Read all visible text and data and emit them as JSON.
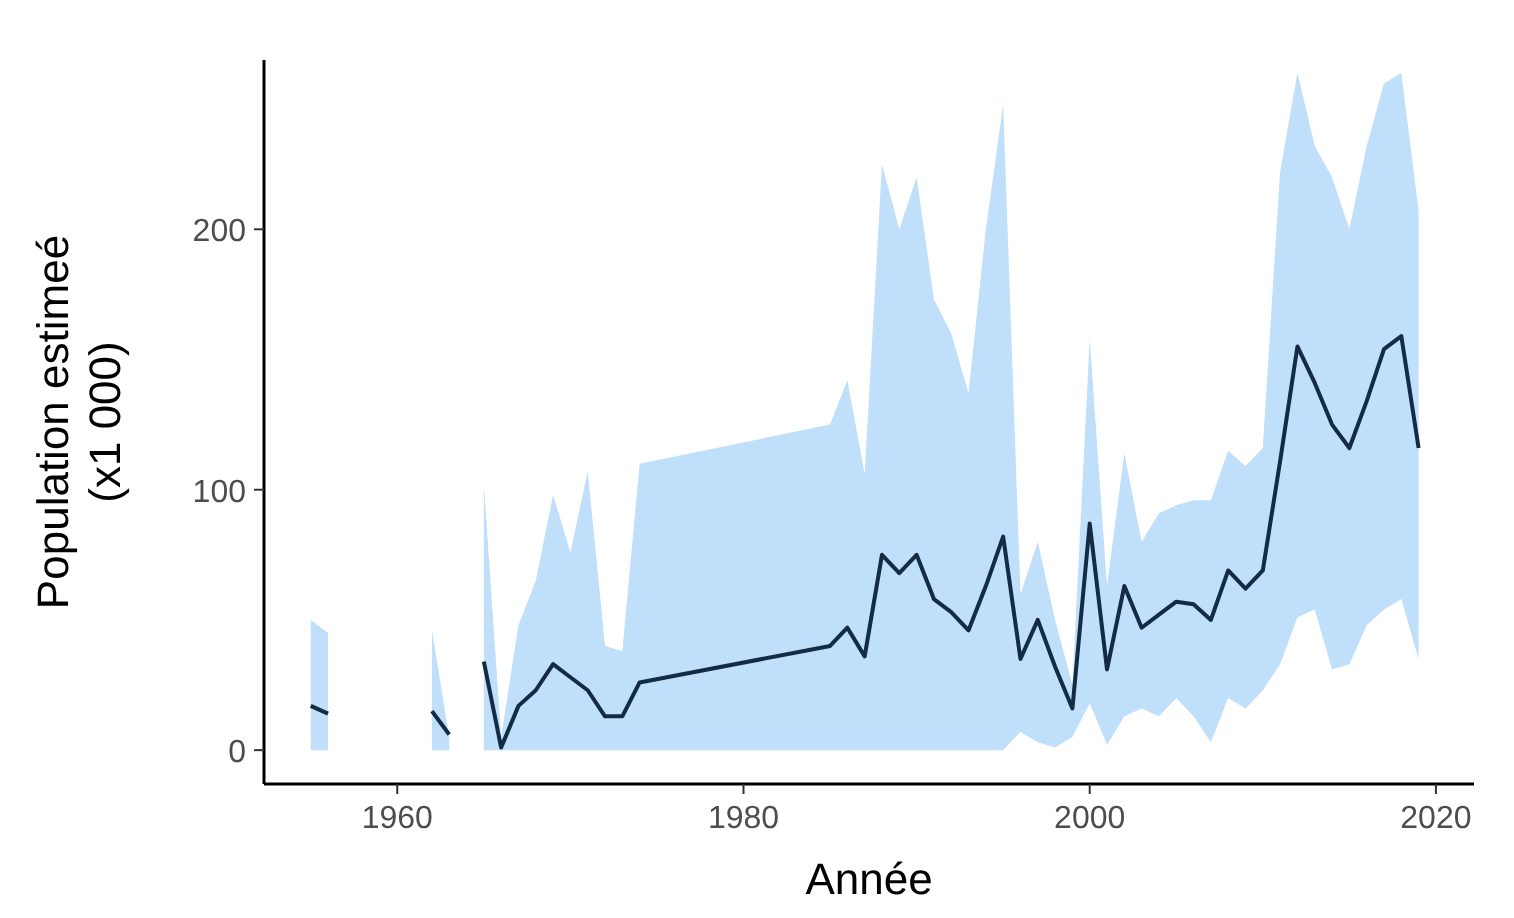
{
  "chart_data": {
    "type": "line",
    "xlabel": "Année",
    "ylabel": "Population estimeé\n(x1 000)",
    "xlim": [
      1952.3,
      2022.2
    ],
    "ylim": [
      -13,
      265
    ],
    "xticks": [
      1960,
      1980,
      2000,
      2020
    ],
    "yticks": [
      0,
      100,
      200
    ],
    "grid": false,
    "marker": "none",
    "line_style": "solid",
    "x": [
      1955,
      1956,
      1957,
      1962,
      1963,
      1964,
      1965,
      1966,
      1967,
      1968,
      1969,
      1970,
      1971,
      1972,
      1973,
      1974,
      1985,
      1986,
      1987,
      1988,
      1989,
      1990,
      1991,
      1992,
      1993,
      1994,
      1995,
      1996,
      1997,
      1998,
      1999,
      2000,
      2001,
      2002,
      2003,
      2004,
      2005,
      2006,
      2007,
      2008,
      2009,
      2010,
      2011,
      2012,
      2013,
      2014,
      2015,
      2016,
      2017,
      2018,
      2019
    ],
    "series": [
      {
        "color": "#132b43",
        "values": [
          17,
          14,
          null,
          15,
          6,
          null,
          34,
          1,
          17,
          23,
          33,
          28,
          23,
          13,
          13,
          26,
          40,
          47,
          36,
          75,
          68,
          75,
          58,
          53,
          46,
          63,
          82,
          35,
          50,
          32,
          16,
          87,
          31,
          63,
          47,
          52,
          57,
          56,
          50,
          69,
          62,
          69,
          111,
          155,
          141,
          125,
          116,
          134,
          154,
          159,
          116
        ],
        "lower": [
          0,
          0,
          null,
          0,
          0,
          null,
          0,
          0,
          0,
          0,
          0,
          0,
          0,
          0,
          0,
          0,
          0,
          0,
          0,
          0,
          0,
          0,
          0,
          0,
          0,
          0,
          0,
          7,
          3,
          1,
          5,
          18,
          2,
          13,
          16,
          13,
          20,
          13,
          3,
          20,
          16,
          23,
          33,
          51,
          54,
          31,
          33,
          48,
          54,
          58,
          35
        ],
        "upper": [
          50,
          45,
          null,
          46,
          5,
          null,
          102,
          5,
          48,
          65,
          98,
          76,
          107,
          40,
          38,
          110,
          125,
          142,
          106,
          225,
          200,
          220,
          173,
          160,
          137,
          200,
          248,
          60,
          80,
          50,
          25,
          158,
          63,
          114,
          80,
          91,
          94,
          96,
          96,
          115,
          109,
          116,
          222,
          260,
          232,
          220,
          200,
          232,
          256,
          260,
          207
        ]
      }
    ]
  }
}
